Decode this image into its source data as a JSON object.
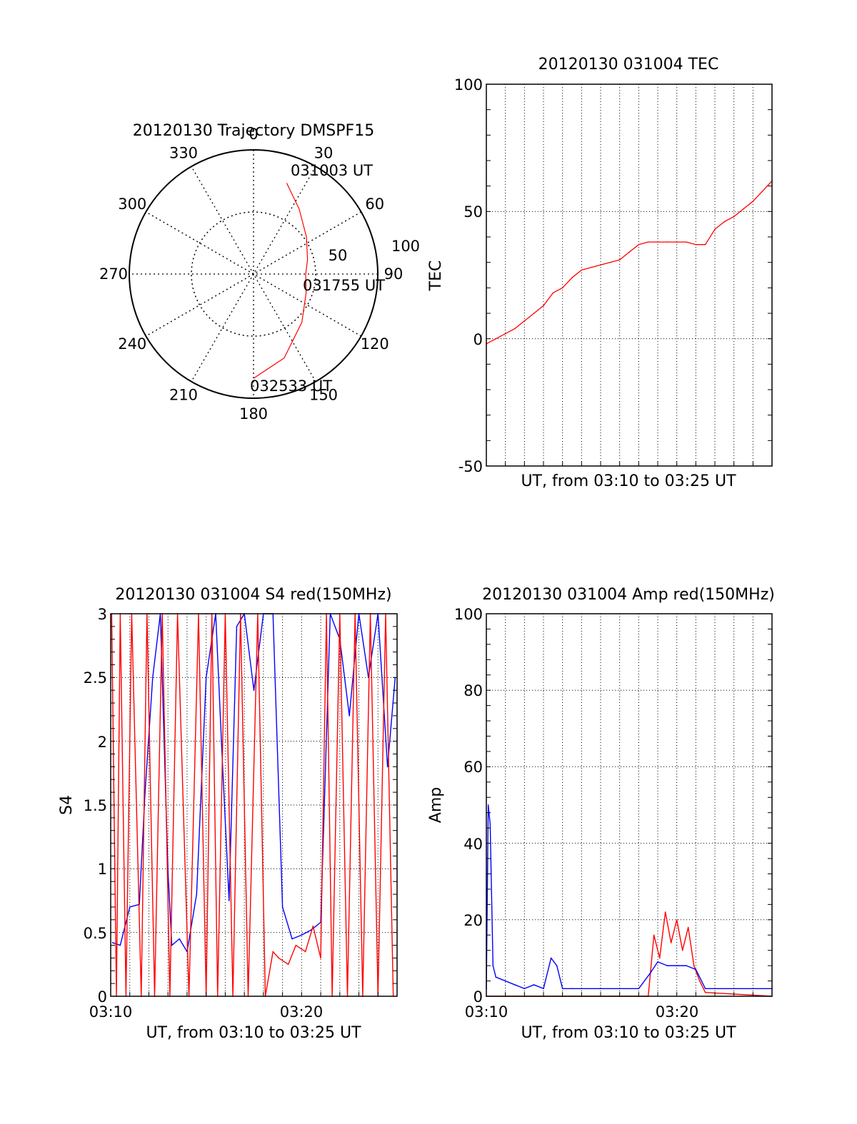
{
  "panels": {
    "trajectory": {
      "title": "20120130 Trajectory DMSPF15",
      "azimuth_labels": [
        "0",
        "30",
        "60",
        "90",
        "120",
        "150",
        "180",
        "210",
        "240",
        "270",
        "300",
        "330"
      ],
      "ring_labels": [
        "50",
        "100"
      ],
      "point_labels": [
        "031003 UT",
        "031755 UT",
        "032533 UT"
      ],
      "trace_color": "#ff0000"
    },
    "tec": {
      "title": "20120130 031004 TEC",
      "ylabel": "TEC",
      "xlabel": "UT, from 03:10 to 03:25 UT",
      "yticks": [
        "100",
        "50",
        "0",
        "-50"
      ]
    },
    "s4": {
      "title": "20120130 031004 S4 red(150MHz)",
      "ylabel": "S4",
      "xlabel": "UT, from 03:10 to 03:25 UT",
      "yticks": [
        "3",
        "2.5",
        "2",
        "1.5",
        "1",
        "0.5",
        "0"
      ],
      "xticks": [
        "03:10",
        "03:20"
      ]
    },
    "amp": {
      "title": "20120130 031004 Amp red(150MHz)",
      "ylabel": "Amp",
      "xlabel": "UT, from 03:10 to 03:25 UT",
      "yticks": [
        "100",
        "80",
        "60",
        "40",
        "20",
        "0"
      ],
      "xticks": [
        "03:10",
        "03:20"
      ]
    }
  },
  "colors": {
    "red": "#ff0000",
    "blue": "#0000ff"
  },
  "chart_data": [
    {
      "type": "polar",
      "title": "20120130 Trajectory DMSPF15",
      "rlim": [
        0,
        100
      ],
      "azimuth_ticks_deg": [
        0,
        30,
        60,
        90,
        120,
        150,
        180,
        210,
        240,
        270,
        300,
        330
      ],
      "series": [
        {
          "color": "#ff0000",
          "points": [
            {
              "label": "031003 UT",
              "az": 20,
              "r": 78
            },
            {
              "az": 35,
              "r": 64
            },
            {
              "az": 55,
              "r": 52
            },
            {
              "az": 75,
              "r": 45
            },
            {
              "label": "031755 UT",
              "az": 90,
              "r": 42
            },
            {
              "az": 110,
              "r": 45
            },
            {
              "az": 135,
              "r": 55
            },
            {
              "az": 160,
              "r": 72
            },
            {
              "label": "032533 UT",
              "az": 180,
              "r": 84
            }
          ]
        }
      ]
    },
    {
      "type": "line",
      "title": "20120130 031004 TEC",
      "xlabel": "UT, from 03:10 to 03:25 UT",
      "ylabel": "TEC",
      "xlim": [
        0,
        15
      ],
      "ylim": [
        -50,
        100
      ],
      "grid": true,
      "series": [
        {
          "color": "#ff0000",
          "x": [
            0,
            0.5,
            1.0,
            1.5,
            2.0,
            2.5,
            3.0,
            3.5,
            4.0,
            4.5,
            5.0,
            5.5,
            6.0,
            6.5,
            7.0,
            7.5,
            8.0,
            8.5,
            9.0,
            9.5,
            10.0,
            10.5,
            11.0,
            11.5,
            12.0,
            12.5,
            13.0,
            13.5,
            14.0,
            14.5,
            15.0
          ],
          "y": [
            -2,
            0,
            2,
            4,
            7,
            10,
            13,
            18,
            20,
            24,
            27,
            28,
            29,
            30,
            31,
            34,
            37,
            38,
            38,
            38,
            38,
            38,
            37,
            37,
            43,
            46,
            48,
            51,
            54,
            58,
            62
          ]
        }
      ]
    },
    {
      "type": "line",
      "title": "20120130 031004 S4 red(150MHz)",
      "xlabel": "UT, from 03:10 to 03:25 UT",
      "ylabel": "S4",
      "xlim": [
        0,
        15
      ],
      "ylim": [
        0,
        3
      ],
      "grid": true,
      "series": [
        {
          "color": "#0000ff",
          "x": [
            0.1,
            0.5,
            1.0,
            1.5,
            1.8,
            2.2,
            2.6,
            3.0,
            3.2,
            3.6,
            4.0,
            4.5,
            5.0,
            5.5,
            5.8,
            6.2,
            6.6,
            7.0,
            7.5,
            8.0,
            8.5,
            9.0,
            9.5,
            10.0,
            10.5,
            11.0,
            11.5,
            12.0,
            12.5,
            13.0,
            13.5,
            14.0,
            14.5,
            14.9
          ],
          "y": [
            0.42,
            0.4,
            0.7,
            0.72,
            1.6,
            2.5,
            3.0,
            0.98,
            0.4,
            0.45,
            0.35,
            0.8,
            2.5,
            3.0,
            2.0,
            0.75,
            2.9,
            3.0,
            2.4,
            3.0,
            3.0,
            0.7,
            0.45,
            0.48,
            0.52,
            0.58,
            3.0,
            2.8,
            2.2,
            3.0,
            2.5,
            3.0,
            1.8,
            2.5
          ]
        },
        {
          "color": "#ff0000",
          "x": [
            0.05,
            0.3,
            0.5,
            0.8,
            1.1,
            1.6,
            1.9,
            2.3,
            2.7,
            3.1,
            3.5,
            4.1,
            4.6,
            5.0,
            5.3,
            5.6,
            6.0,
            6.4,
            6.8,
            7.2,
            7.7,
            8.1,
            8.5,
            8.8,
            9.3,
            9.7,
            10.2,
            10.6,
            11.0,
            11.3,
            11.6,
            12.0,
            12.4,
            12.8,
            13.2,
            13.6,
            14.0,
            14.4,
            14.8
          ],
          "y": [
            3.0,
            0.0,
            3.0,
            0.0,
            3.0,
            0.0,
            3.0,
            0.0,
            3.0,
            0.0,
            3.0,
            0.0,
            3.0,
            0.0,
            3.0,
            0.0,
            3.0,
            0.0,
            3.0,
            0.0,
            3.0,
            0.0,
            0.35,
            0.3,
            0.25,
            0.4,
            0.35,
            0.55,
            0.3,
            3.0,
            0.0,
            3.0,
            0.0,
            3.0,
            0.0,
            3.0,
            0.0,
            3.0,
            0.0
          ]
        }
      ]
    },
    {
      "type": "line",
      "title": "20120130 031004 Amp red(150MHz)",
      "xlabel": "UT, from 03:10 to 03:25 UT",
      "ylabel": "Amp",
      "xlim": [
        0,
        15
      ],
      "ylim": [
        0,
        100
      ],
      "grid": true,
      "series": [
        {
          "color": "#ff0000",
          "x": [
            0,
            8.5,
            8.8,
            9.1,
            9.4,
            9.7,
            10.0,
            10.3,
            10.6,
            10.9,
            11.2,
            11.5,
            15.0
          ],
          "y": [
            0,
            0,
            16,
            10,
            22,
            14,
            20,
            12,
            18,
            8,
            4,
            1,
            0
          ]
        },
        {
          "color": "#0000ff",
          "x": [
            0,
            0.1,
            0.2,
            0.35,
            0.5,
            1.0,
            1.5,
            2.0,
            2.5,
            3.0,
            3.4,
            3.7,
            4.0,
            4.5,
            5.0,
            6.0,
            7.0,
            8.0,
            8.6,
            9.0,
            9.5,
            10.0,
            10.5,
            11.0,
            11.5,
            12.0,
            13.0,
            14.0,
            15.0
          ],
          "y": [
            2,
            50,
            45,
            8,
            5,
            4,
            3,
            2,
            3,
            2,
            10,
            8,
            2,
            2,
            2,
            2,
            2,
            2,
            6,
            9,
            8,
            8,
            8,
            7,
            2,
            2,
            2,
            2,
            2
          ]
        }
      ]
    }
  ]
}
